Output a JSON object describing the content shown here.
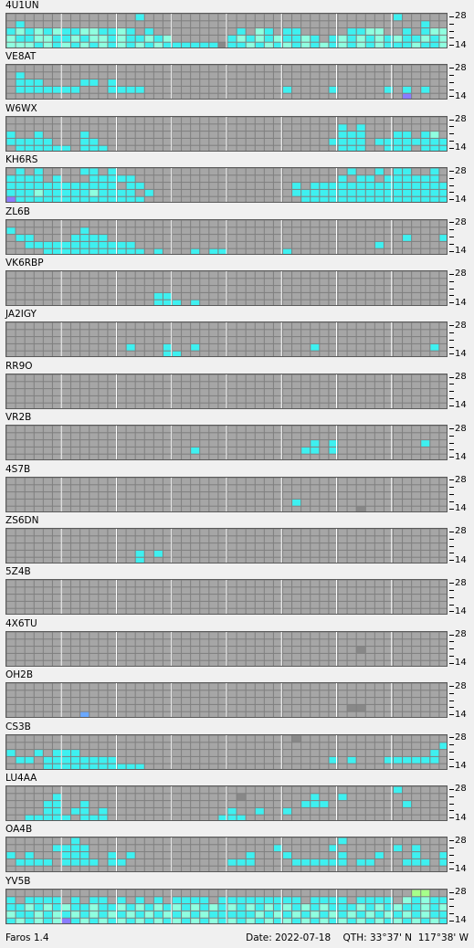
{
  "app": {
    "version": "Faros 1.4"
  },
  "status": {
    "date_label": "Date:",
    "date": "2022-07-18",
    "qth_label": "QTH:",
    "lat": "33°37' N",
    "lon": "117°38' W"
  },
  "band_labels": {
    "top": "28",
    "bottom": "14"
  },
  "colors": {
    "grid_bg": "#7f7f7f",
    "cell_empty": "#a6a6a6",
    "cell_grid_line": "#8a8a8a",
    "hour_line": "#ffffff",
    "levels": [
      "#a6a6a6",
      "#3ef0f0",
      "#8fffe0",
      "#a6ff8a",
      "#6aa8ff",
      "#8a7cff",
      "#888888"
    ]
  },
  "grid": {
    "columns": 48,
    "rows": 5,
    "hour_divisions": 8
  },
  "beacons": [
    {
      "callsign": "4U1UN",
      "rows": [
        "000000000000001000000000000000000000000000100000",
        "010000000000000000000000000000000000000000000100",
        "121212112211210100000000010210110000011220010122",
        "211221121221211212000000121212112101212121211212",
        "222121212121212121111116112121212121212121112112"
      ]
    },
    {
      "callsign": "VE8AT",
      "rows": [
        "000000000000000000000000000000000000000000000000",
        "010000000000000000000000000000000000000000000000",
        "011100001101000000000000000000000000000000000000",
        "011111110001111000000000000000100001000001010100",
        "000000000000000000000000000000000000000000050000"
      ]
    },
    {
      "callsign": "W6WX",
      "rows": [
        "000000000000000000000000000000000000000000000000",
        "000000000000000000000000000000000000101000000000",
        "100100001000000000000000000000000000111000110120",
        "111110001100000000000000000000000001111011111111",
        "011111101110000000000000000000000000111001110111"
      ]
    },
    {
      "callsign": "KH6RS",
      "rows": [
        "010100001101000000000000000000000000010010110010",
        "111101000111110000000000000000000000101101111110",
        "111111111111011000000000000000010111111111111111",
        "111211111211110100000000000000011111111111111111",
        "511111111111111000000000000000001111111111111111"
      ]
    },
    {
      "callsign": "ZL6B",
      "rows": [
        "000000000000000000000000000000000000000000000000",
        "100000001000000000000000000000000000000000000000",
        "011000011110000000000000000000000000000000010001",
        "001111111111110000000000000000000000000010000000",
        "000011111111111010001011000000100000000000000000"
      ]
    },
    {
      "callsign": "VK6RBP",
      "rows": [
        "000000000000000000000000000000000000000000000000",
        "000000000000000000000000000000000000000000000000",
        "000000000000000000000000000000000000000000000000",
        "000000000000000011000000000000000000000000000000",
        "000000000000000011101000000000000000000000000000"
      ]
    },
    {
      "callsign": "JA2IGY",
      "rows": [
        "000000000000000000000000000000000000000000000000",
        "000000000000000000000000000000000000000000000000",
        "000000000000000000000000000000000000000000000000",
        "000000000000010001001000000000000100000000000010",
        "000000000000000001100000000000000000000000000000"
      ]
    },
    {
      "callsign": "RR9O",
      "rows": [
        "000000000000000000000000000000000000000000000000",
        "000000000000000000000000000000000000000000000000",
        "000000000000000000000000000000000000000000000000",
        "000000000000000000000000000000000000000000000000",
        "000000000000000000000000000000000000000000000000"
      ]
    },
    {
      "callsign": "VR2B",
      "rows": [
        "000000000000000000000000000000000000000000000000",
        "000000000000000000000000000000000000000000000000",
        "000000000000000000000000000000000101000000000100",
        "000000000000000000001000000000001101000000000000",
        "000000000000000000000000000000000000000000000000"
      ]
    },
    {
      "callsign": "4S7B",
      "rows": [
        "000000000000000000000000000000000000000000000000",
        "000000000000000000000000000000000000000000000000",
        "000000000000000000000000000000000000000000000000",
        "000000000000000000000000000000010000000000000000",
        "000000000000000000000000000000000000006000000000"
      ]
    },
    {
      "callsign": "ZS6DN",
      "rows": [
        "000000000000000000000000000000000000000000000000",
        "000000000000000000000000000000000000000000000000",
        "000000000000000000000000000000000000000000000000",
        "000000000000001010000000000000000000000000000000",
        "000000000000001000000000000000000000000000000000"
      ]
    },
    {
      "callsign": "5Z4B",
      "rows": [
        "000000000000000000000000000000000000000000000000",
        "000000000000000000000000000000000000000000000000",
        "000000000000000000000000000000000000000000000000",
        "000000000000000000000000000000000000000000000000",
        "000000000000000000000000000000000000000000000000"
      ]
    },
    {
      "callsign": "4X6TU",
      "rows": [
        "000000000000000000000000000000000000000000000000",
        "000000000000000000000000000000000000000000000000",
        "000000000000000000000000000000000000006000000000",
        "000000000000000000000000000000000000000000000000",
        "000000000000000000000000000000000000000000000000"
      ]
    },
    {
      "callsign": "OH2B",
      "rows": [
        "000000000000000000000000000000000000000000000000",
        "000000000000000000000000000000000000000000000000",
        "000000000000000000000000000000000000000000000000",
        "000000000000000000000000000000000000066000000000",
        "000000004000000000000000000000000000000000000000"
      ]
    },
    {
      "callsign": "CS3B",
      "rows": [
        "000000000000000000000000000000060000000000000000",
        "000000000000000000000000000000000000000000000001",
        "100101110000000000000000000000000000000000000010",
        "011011111111000000000000000000000001010001111110",
        "000011111111111000000000000000000000000000000000"
      ]
    },
    {
      "callsign": "LU4AA",
      "rows": [
        "000000000000000000000000000000000000000000100000",
        "000001000000000000000000060000000100100000000000",
        "000011001000000000000000000000001110000000010000",
        "000011011010000000000000100100100000000000000000",
        "001111101110000000000001110000000000000000000000"
      ]
    },
    {
      "callsign": "OA4B",
      "rows": [
        "000000010000000000000000000000000000100000000000",
        "000001111000000000000000000001000001000000101000",
        "101000111001010000000000001000100000100010001001",
        "011110111101100000000000111000011111101100011101",
        "000000000000000000000000000000000000000000000000"
      ]
    },
    {
      "callsign": "YV5B",
      "rows": [
        "000000000000000000000000000000000000000000003300",
        "101111010110101010111101111111110111101111021211",
        "112121211211212121212121212121212121112121211212",
        "211212121212121212121211111212121212121212121211",
        "121212512121212121212121212121212121212121212121"
      ]
    }
  ]
}
